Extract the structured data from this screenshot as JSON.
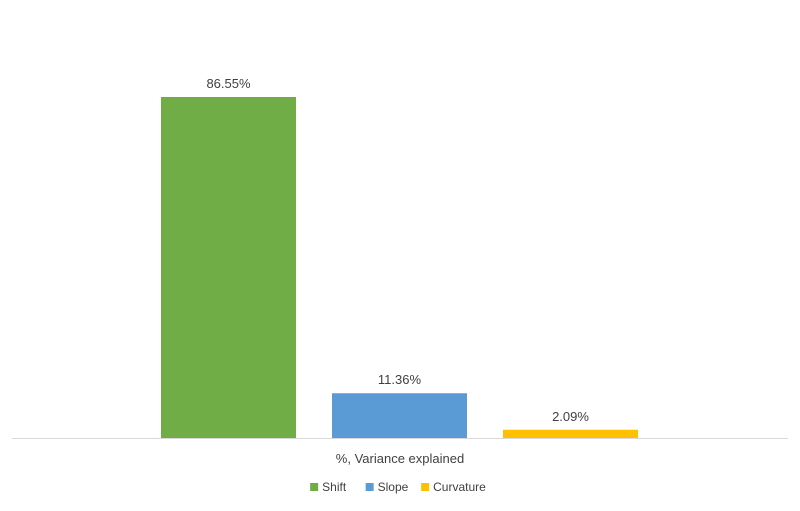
{
  "chart_data": {
    "type": "bar",
    "categories": [
      "%, Variance explained"
    ],
    "series": [
      {
        "name": "Shift",
        "values": [
          86.55
        ],
        "label": "86.55%",
        "color": "#70ad47"
      },
      {
        "name": "Slope",
        "values": [
          11.36
        ],
        "label": "11.36%",
        "color": "#5b9bd5"
      },
      {
        "name": "Curvature",
        "values": [
          2.09
        ],
        "label": "2.09%",
        "color": "#ffc000"
      }
    ],
    "xlabel": "",
    "ylabel": "",
    "ylim": [
      0,
      100
    ],
    "grid": false,
    "legend_position": "bottom",
    "data_labels": true,
    "colors": {
      "axis_line": "#d9d9d9",
      "text": "#404040"
    }
  }
}
